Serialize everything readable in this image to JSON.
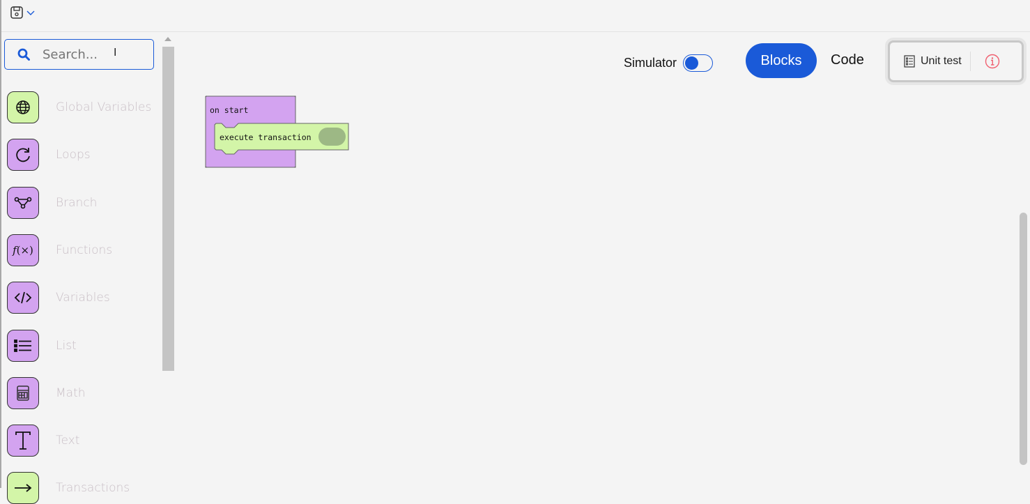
{
  "toolbar": {
    "save_icon": "floppy-disk-icon",
    "dropdown_icon": "chevron-down-icon"
  },
  "search": {
    "placeholder": "Search..."
  },
  "categories": [
    {
      "label": "Global Variables",
      "icon": "globe-icon",
      "color": "#d3f5a8"
    },
    {
      "label": "Loops",
      "icon": "loop-icon",
      "color": "#d3a3f0"
    },
    {
      "label": "Branch",
      "icon": "branch-icon",
      "color": "#d3a3f0"
    },
    {
      "label": "Functions",
      "icon": "function-icon",
      "color": "#d3a3f0"
    },
    {
      "label": "Variables",
      "icon": "code-icon",
      "color": "#d3a3f0"
    },
    {
      "label": "List",
      "icon": "list-icon",
      "color": "#d3a3f0"
    },
    {
      "label": "Math",
      "icon": "calculator-icon",
      "color": "#d3a3f0"
    },
    {
      "label": "Text",
      "icon": "text-icon",
      "color": "#d3a3f0"
    },
    {
      "label": "Transactions",
      "icon": "arrow-right-icon",
      "color": "#d3f5a8"
    }
  ],
  "header": {
    "simulator_label": "Simulator",
    "simulator_on": false,
    "blocks_label": "Blocks",
    "code_label": "Code",
    "unit_test_label": "Unit test",
    "accent": "#1a5ad8"
  },
  "workspace": {
    "event_block": "on start",
    "action_block": "execute transaction"
  }
}
